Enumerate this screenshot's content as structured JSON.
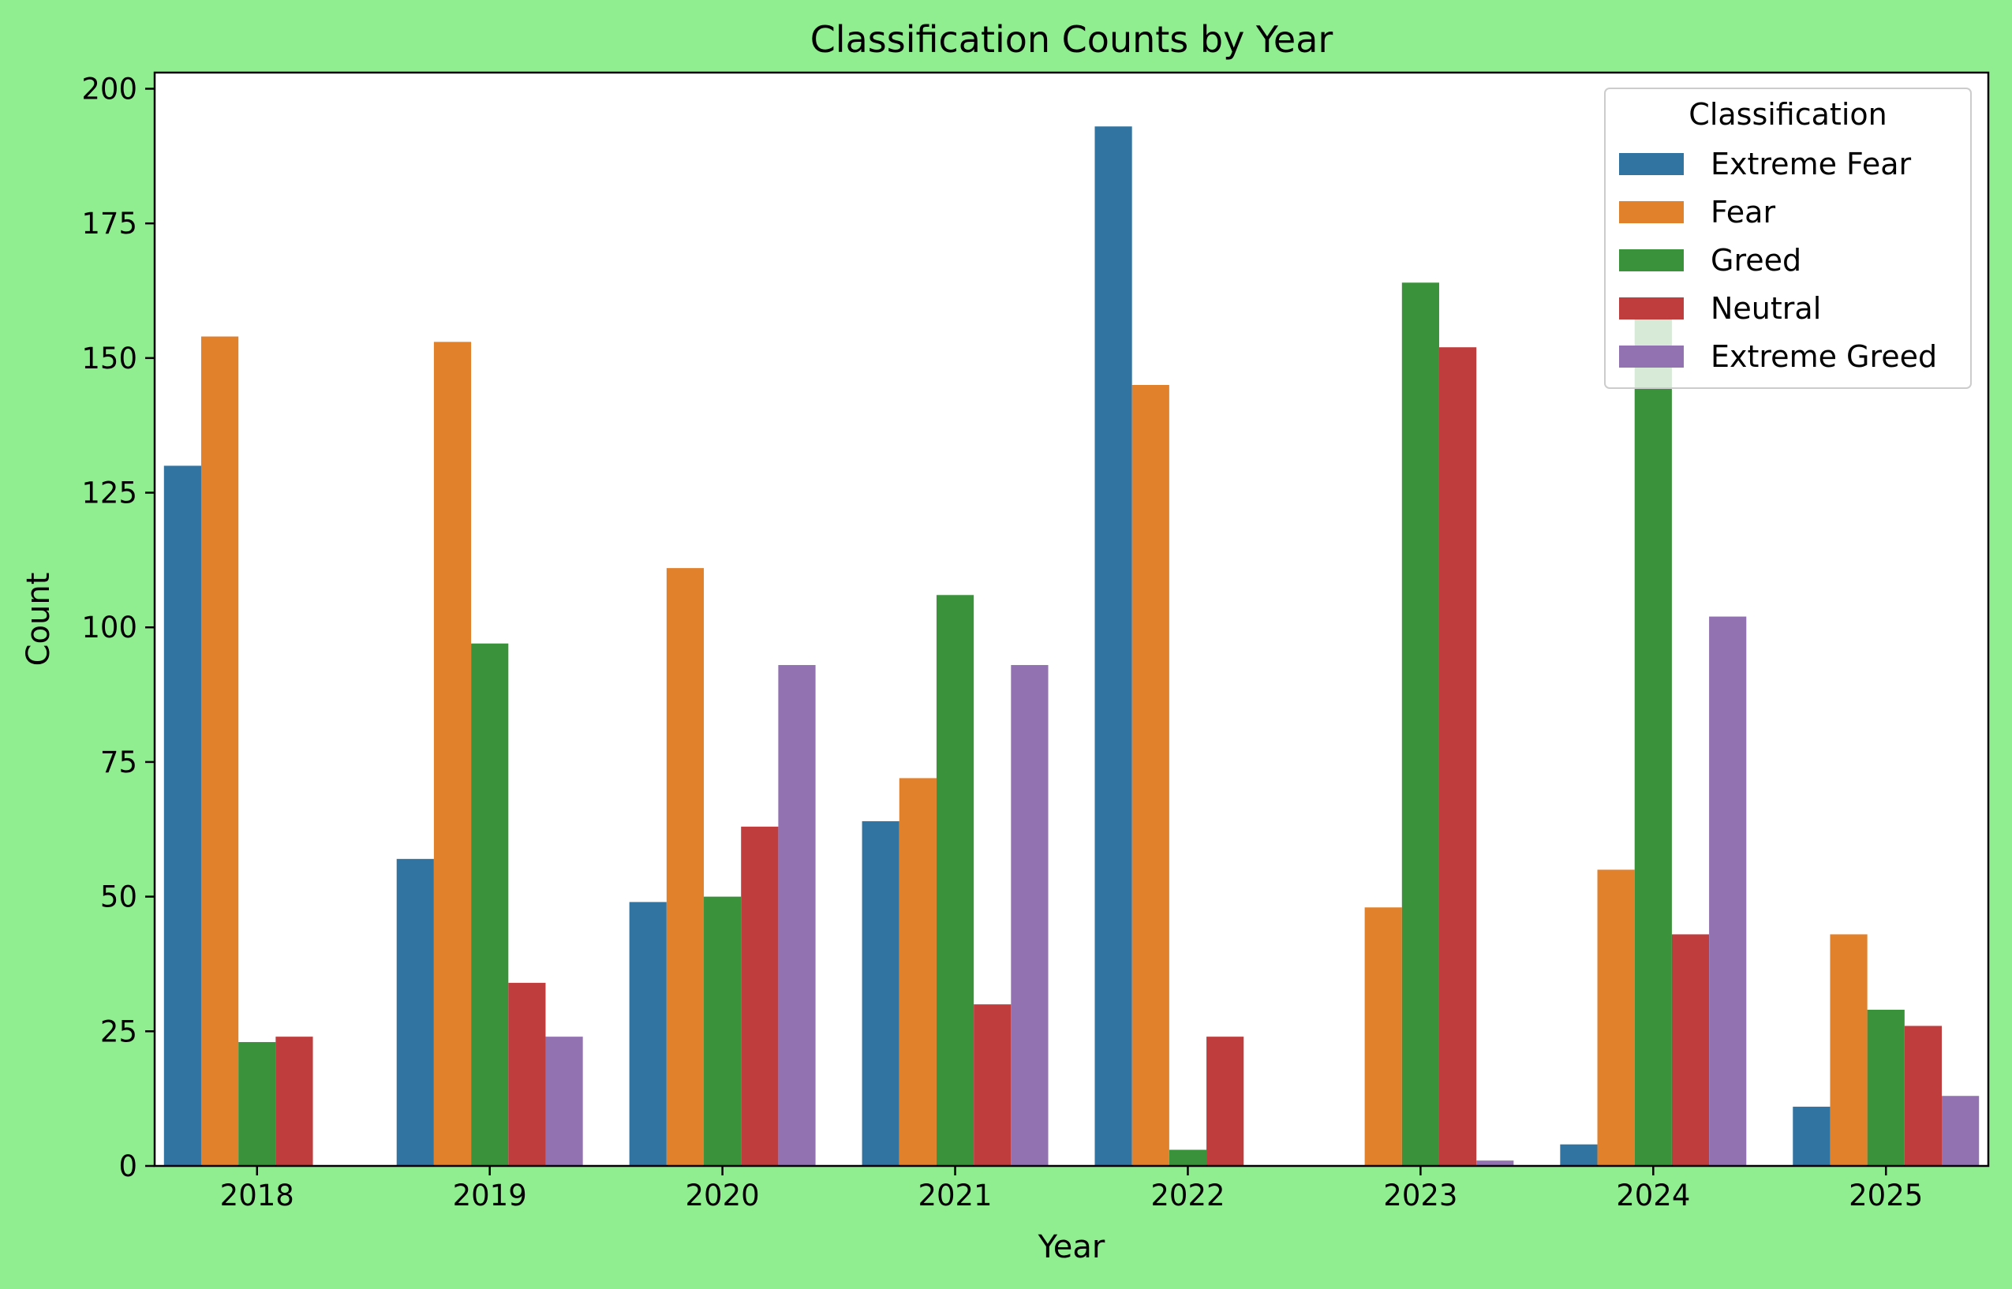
{
  "chart_data": {
    "type": "bar",
    "title": "Classification Counts by Year",
    "xlabel": "Year",
    "ylabel": "Count",
    "categories": [
      "2018",
      "2019",
      "2020",
      "2021",
      "2022",
      "2023",
      "2024",
      "2025"
    ],
    "ylim": [
      0,
      203
    ],
    "yticks": [
      0,
      25,
      50,
      75,
      100,
      125,
      150,
      175,
      200
    ],
    "grid": false,
    "legend": {
      "title": "Classification",
      "placement": "top-right"
    },
    "series": [
      {
        "name": "Extreme Fear",
        "color": "#3274a1",
        "values": [
          130,
          57,
          49,
          64,
          193,
          0,
          4,
          11
        ]
      },
      {
        "name": "Fear",
        "color": "#e1812c",
        "values": [
          154,
          153,
          111,
          72,
          145,
          48,
          55,
          43
        ]
      },
      {
        "name": "Greed",
        "color": "#3a923a",
        "values": [
          23,
          97,
          50,
          106,
          3,
          164,
          158,
          29
        ]
      },
      {
        "name": "Neutral",
        "color": "#c03d3e",
        "values": [
          24,
          34,
          63,
          30,
          24,
          152,
          43,
          26
        ]
      },
      {
        "name": "Extreme Greed",
        "color": "#9372b2",
        "values": [
          0,
          24,
          93,
          93,
          0,
          1,
          102,
          13
        ]
      }
    ]
  }
}
